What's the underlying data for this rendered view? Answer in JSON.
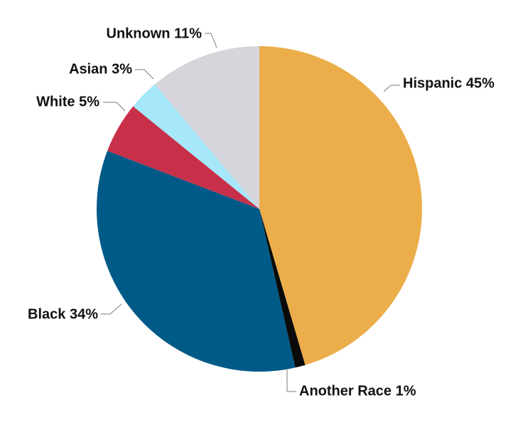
{
  "chart_data": {
    "type": "pie",
    "title": "",
    "start_angle_deg": 0,
    "direction": "clockwise",
    "legend": "none",
    "slices": [
      {
        "label": "Hispanic",
        "value": 45,
        "display": "Hispanic 45%",
        "color": "#ECAE4A"
      },
      {
        "label": "Another Race",
        "value": 1,
        "display": "Another Race 1%",
        "color": "#0B0B0B"
      },
      {
        "label": "Black",
        "value": 34,
        "display": "Black 34%",
        "color": "#005A87"
      },
      {
        "label": "White",
        "value": 5,
        "display": "White 5%",
        "color": "#C8304A"
      },
      {
        "label": "Asian",
        "value": 3,
        "display": "Asian 3%",
        "color": "#A6E8FA"
      },
      {
        "label": "Unknown",
        "value": 11,
        "display": "Unknown 11%",
        "color": "#D5D5DB"
      }
    ]
  }
}
